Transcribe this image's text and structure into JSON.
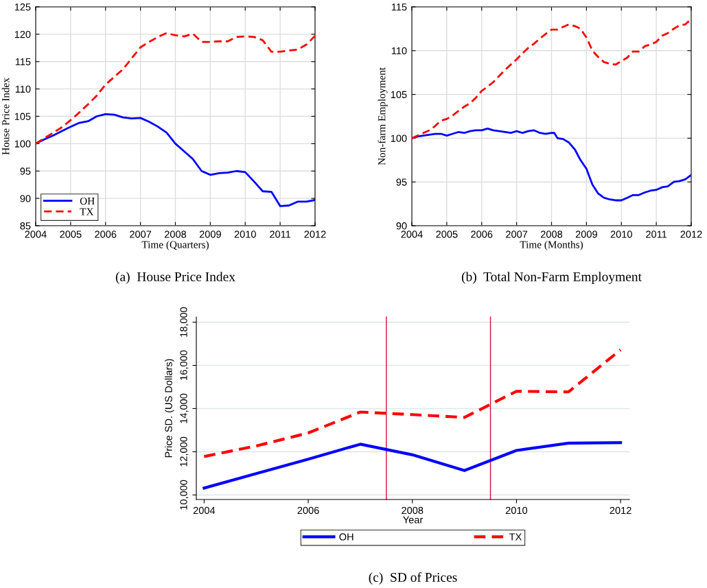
{
  "chart_data": [
    {
      "type": "line",
      "title": "(a)  House Price Index",
      "xlabel": "Time (Quarters)",
      "ylabel": "House Price Index",
      "x": [
        2004,
        2004.25,
        2004.5,
        2004.75,
        2005,
        2005.25,
        2005.5,
        2005.75,
        2006,
        2006.25,
        2006.5,
        2006.75,
        2007,
        2007.25,
        2007.5,
        2007.75,
        2008,
        2008.25,
        2008.5,
        2008.75,
        2009,
        2009.25,
        2009.5,
        2009.75,
        2010,
        2010.25,
        2010.5,
        2010.75,
        2011,
        2011.25,
        2011.5,
        2011.75,
        2012
      ],
      "series": [
        {
          "name": "OH",
          "color": "#0000ff",
          "line_style": "solid",
          "values": [
            100,
            100.8,
            101.5,
            102.3,
            103.1,
            103.8,
            104.1,
            105.0,
            105.4,
            105.3,
            104.8,
            104.6,
            104.7,
            104.0,
            103.1,
            102.0,
            100.0,
            98.6,
            97.2,
            95.0,
            94.3,
            94.6,
            94.7,
            95.0,
            94.8,
            93.1,
            91.3,
            91.2,
            88.6,
            88.7,
            89.4,
            89.4,
            89.7
          ]
        },
        {
          "name": "TX",
          "color": "#ff0000",
          "line_style": "dashed",
          "values": [
            100,
            101.0,
            102.0,
            103.0,
            104.3,
            105.7,
            107.2,
            108.8,
            110.8,
            112.2,
            113.6,
            115.6,
            117.6,
            118.6,
            119.5,
            120.2,
            119.8,
            119.6,
            120.1,
            118.6,
            118.6,
            118.7,
            118.7,
            119.5,
            119.6,
            119.5,
            118.9,
            116.8,
            116.8,
            117.0,
            117.2,
            118.1,
            119.7
          ]
        }
      ],
      "xlim": [
        2004,
        2012
      ],
      "xticks": [
        2004,
        2005,
        2006,
        2007,
        2008,
        2009,
        2010,
        2011,
        2012
      ],
      "ylim": [
        85,
        125
      ],
      "yticks": [
        85,
        90,
        95,
        100,
        105,
        110,
        115,
        120,
        125
      ],
      "grid": true,
      "legend": "bottom left"
    },
    {
      "type": "line",
      "title": "(b)  Total Non-Farm Employment",
      "xlabel": "Time (Months)",
      "ylabel": "Non-farm Employment",
      "x": [
        2004,
        2004.17,
        2004.33,
        2004.5,
        2004.67,
        2004.83,
        2005,
        2005.17,
        2005.33,
        2005.5,
        2005.67,
        2005.83,
        2006,
        2006.17,
        2006.33,
        2006.5,
        2006.67,
        2006.83,
        2007,
        2007.17,
        2007.33,
        2007.5,
        2007.67,
        2007.83,
        2008,
        2008.08,
        2008.17,
        2008.33,
        2008.5,
        2008.67,
        2008.83,
        2009,
        2009.17,
        2009.33,
        2009.5,
        2009.67,
        2009.83,
        2010,
        2010.17,
        2010.33,
        2010.5,
        2010.67,
        2010.83,
        2011,
        2011.17,
        2011.33,
        2011.5,
        2011.67,
        2011.83,
        2012
      ],
      "series": [
        {
          "color": "#0000ff",
          "line_style": "solid",
          "values": [
            100,
            100.2,
            100.3,
            100.4,
            100.5,
            100.5,
            100.3,
            100.5,
            100.7,
            100.6,
            100.8,
            100.9,
            100.9,
            101.1,
            100.9,
            100.8,
            100.7,
            100.6,
            100.8,
            100.6,
            100.8,
            100.9,
            100.6,
            100.5,
            100.6,
            100.6,
            100.0,
            99.9,
            99.5,
            98.7,
            97.5,
            96.5,
            94.7,
            93.7,
            93.2,
            93.0,
            92.9,
            92.9,
            93.2,
            93.5,
            93.5,
            93.8,
            94.0,
            94.1,
            94.4,
            94.5,
            95.0,
            95.1,
            95.3,
            95.8
          ]
        },
        {
          "color": "#ff0000",
          "line_style": "dashed",
          "values": [
            100,
            100.3,
            100.6,
            100.9,
            101.4,
            102.0,
            102.2,
            102.6,
            103.1,
            103.6,
            104.0,
            104.6,
            105.4,
            105.9,
            106.4,
            107.1,
            107.8,
            108.4,
            109.0,
            109.7,
            110.3,
            110.8,
            111.4,
            111.9,
            112.4,
            112.4,
            112.4,
            112.7,
            113.0,
            112.8,
            112.5,
            111.5,
            110.0,
            109.3,
            108.7,
            108.5,
            108.4,
            108.8,
            109.2,
            109.9,
            109.9,
            110.5,
            110.7,
            111.0,
            111.7,
            112.0,
            112.5,
            112.9,
            113.0,
            113.6
          ]
        }
      ],
      "xlim": [
        2004,
        2012
      ],
      "xticks": [
        2004,
        2005,
        2006,
        2007,
        2008,
        2009,
        2010,
        2011,
        2012
      ],
      "ylim": [
        90,
        115
      ],
      "yticks": [
        90,
        95,
        100,
        105,
        110,
        115
      ],
      "grid": true
    },
    {
      "type": "line",
      "title": "(c)  SD of Prices",
      "xlabel": "Year",
      "ylabel": "Price SD. (US Dollars)",
      "x": [
        2004,
        2005,
        2006,
        2007,
        2008,
        2009,
        2010,
        2011,
        2012
      ],
      "series": [
        {
          "name": "OH",
          "color": "#0000ff",
          "line_style": "solid",
          "values": [
            10320,
            10990,
            11660,
            12350,
            11860,
            11130,
            12060,
            12400,
            12420
          ]
        },
        {
          "name": "TX",
          "color": "#ff0000",
          "line_style": "dashed",
          "values": [
            11780,
            12270,
            12870,
            13840,
            13720,
            13590,
            14800,
            14770,
            16720
          ]
        }
      ],
      "xlim": [
        2003.85,
        2012.17
      ],
      "xticks": [
        2004,
        2006,
        2008,
        2010,
        2012
      ],
      "ylim": [
        9790,
        18240
      ],
      "yticks": [
        {
          "value": 10000,
          "label": "10,000"
        },
        {
          "value": 12000,
          "label": "12,000"
        },
        {
          "value": 14000,
          "label": "14,000"
        },
        {
          "value": 16000,
          "label": "16,000"
        },
        {
          "value": 18000,
          "label": "18,000"
        }
      ],
      "grid": "y",
      "legend": "bottom",
      "ref_lines": [
        {
          "axis": "x",
          "value": 2007.5,
          "color": "#d0103a"
        },
        {
          "axis": "x",
          "value": 2009.5,
          "color": "#d0103a"
        }
      ]
    }
  ]
}
